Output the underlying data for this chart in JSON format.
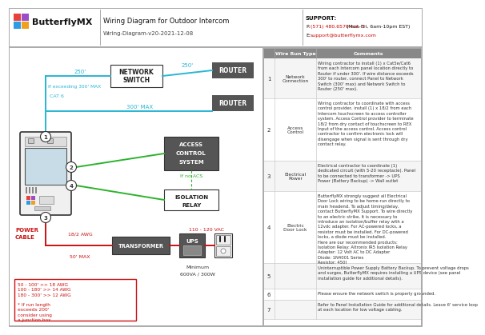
{
  "title": "Wiring Diagram for Outdoor Intercom",
  "subtitle": "Wiring-Diagram-v20-2021-12-08",
  "support_bold": "SUPPORT:",
  "support_phone_label": "P:",
  "support_phone_red": "(571) 480.6579 ext. 2",
  "support_phone_rest": " (Mon-Fri, 6am-10pm EST)",
  "support_email_label": "E:",
  "support_email_red": "support@butterflymx.com",
  "background": "#ffffff",
  "wire_blue": "#29b6d4",
  "wire_green": "#2db32d",
  "wire_red": "#cc1111",
  "box_dark": "#555555",
  "rows": [
    {
      "num": "1",
      "type": "Network Connection",
      "comment": "Wiring contractor to install (1) x Cat5e/Cat6\nfrom each Intercom panel location directly to\nRouter if under 300'. If wire distance exceeds\n300' to router, connect Panel to Network\nSwitch (300' max) and Network Switch to\nRouter (250' max)."
    },
    {
      "num": "2",
      "type": "Access Control",
      "comment": "Wiring contractor to coordinate with access\ncontrol provider, install (1) x 18/2 from each\nIntercom touchscreen to access controller\nsystem. Access Control provider to terminate\n18/2 from dry contact of touchscreen to REX\nInput of the access control. Access control\ncontractor to confirm electronic lock will\ndisengage when signal is sent through dry\ncontact relay."
    },
    {
      "num": "3",
      "type": "Electrical Power",
      "comment": "Electrical contractor to coordinate (1)\ndedicated circuit (with 5-20 receptacle). Panel\nto be connected to transformer -> UPS\nPower (Battery Backup) -> Wall outlet"
    },
    {
      "num": "4",
      "type": "Electric Door Lock",
      "comment": "ButterflyMX strongly suggest all Electrical\nDoor Lock wiring to be home-run directly to\nmain headend. To adjust timing/delay,\ncontact ButterflyMX Support. To wire directly\nto an electric strike, it is necessary to\nintroduce an isolation/buffer relay with a\n12vdc adapter. For AC-powered locks, a\nresistor must be installed. For DC-powered\nlocks, a diode must be installed.\nHere are our recommended products:\nIsolation Relay: Altronix IR5 Isolation Relay\nAdapter: 12 Volt AC to DC Adapter\nDiode: 1N4001 Series\nResistor: 450I"
    },
    {
      "num": "5",
      "type": "",
      "comment": "Uninterruptible Power Supply Battery Backup. To prevent voltage drops\nand surges, ButterflyMX requires installing a UPS device (see panel\ninstallation guide for additional details)."
    },
    {
      "num": "6",
      "type": "",
      "comment": "Please ensure the network switch is properly grounded."
    },
    {
      "num": "7",
      "type": "",
      "comment": "Refer to Panel Installation Guide for additional details. Leave 6' service loop\nat each location for low voltage cabling."
    }
  ]
}
